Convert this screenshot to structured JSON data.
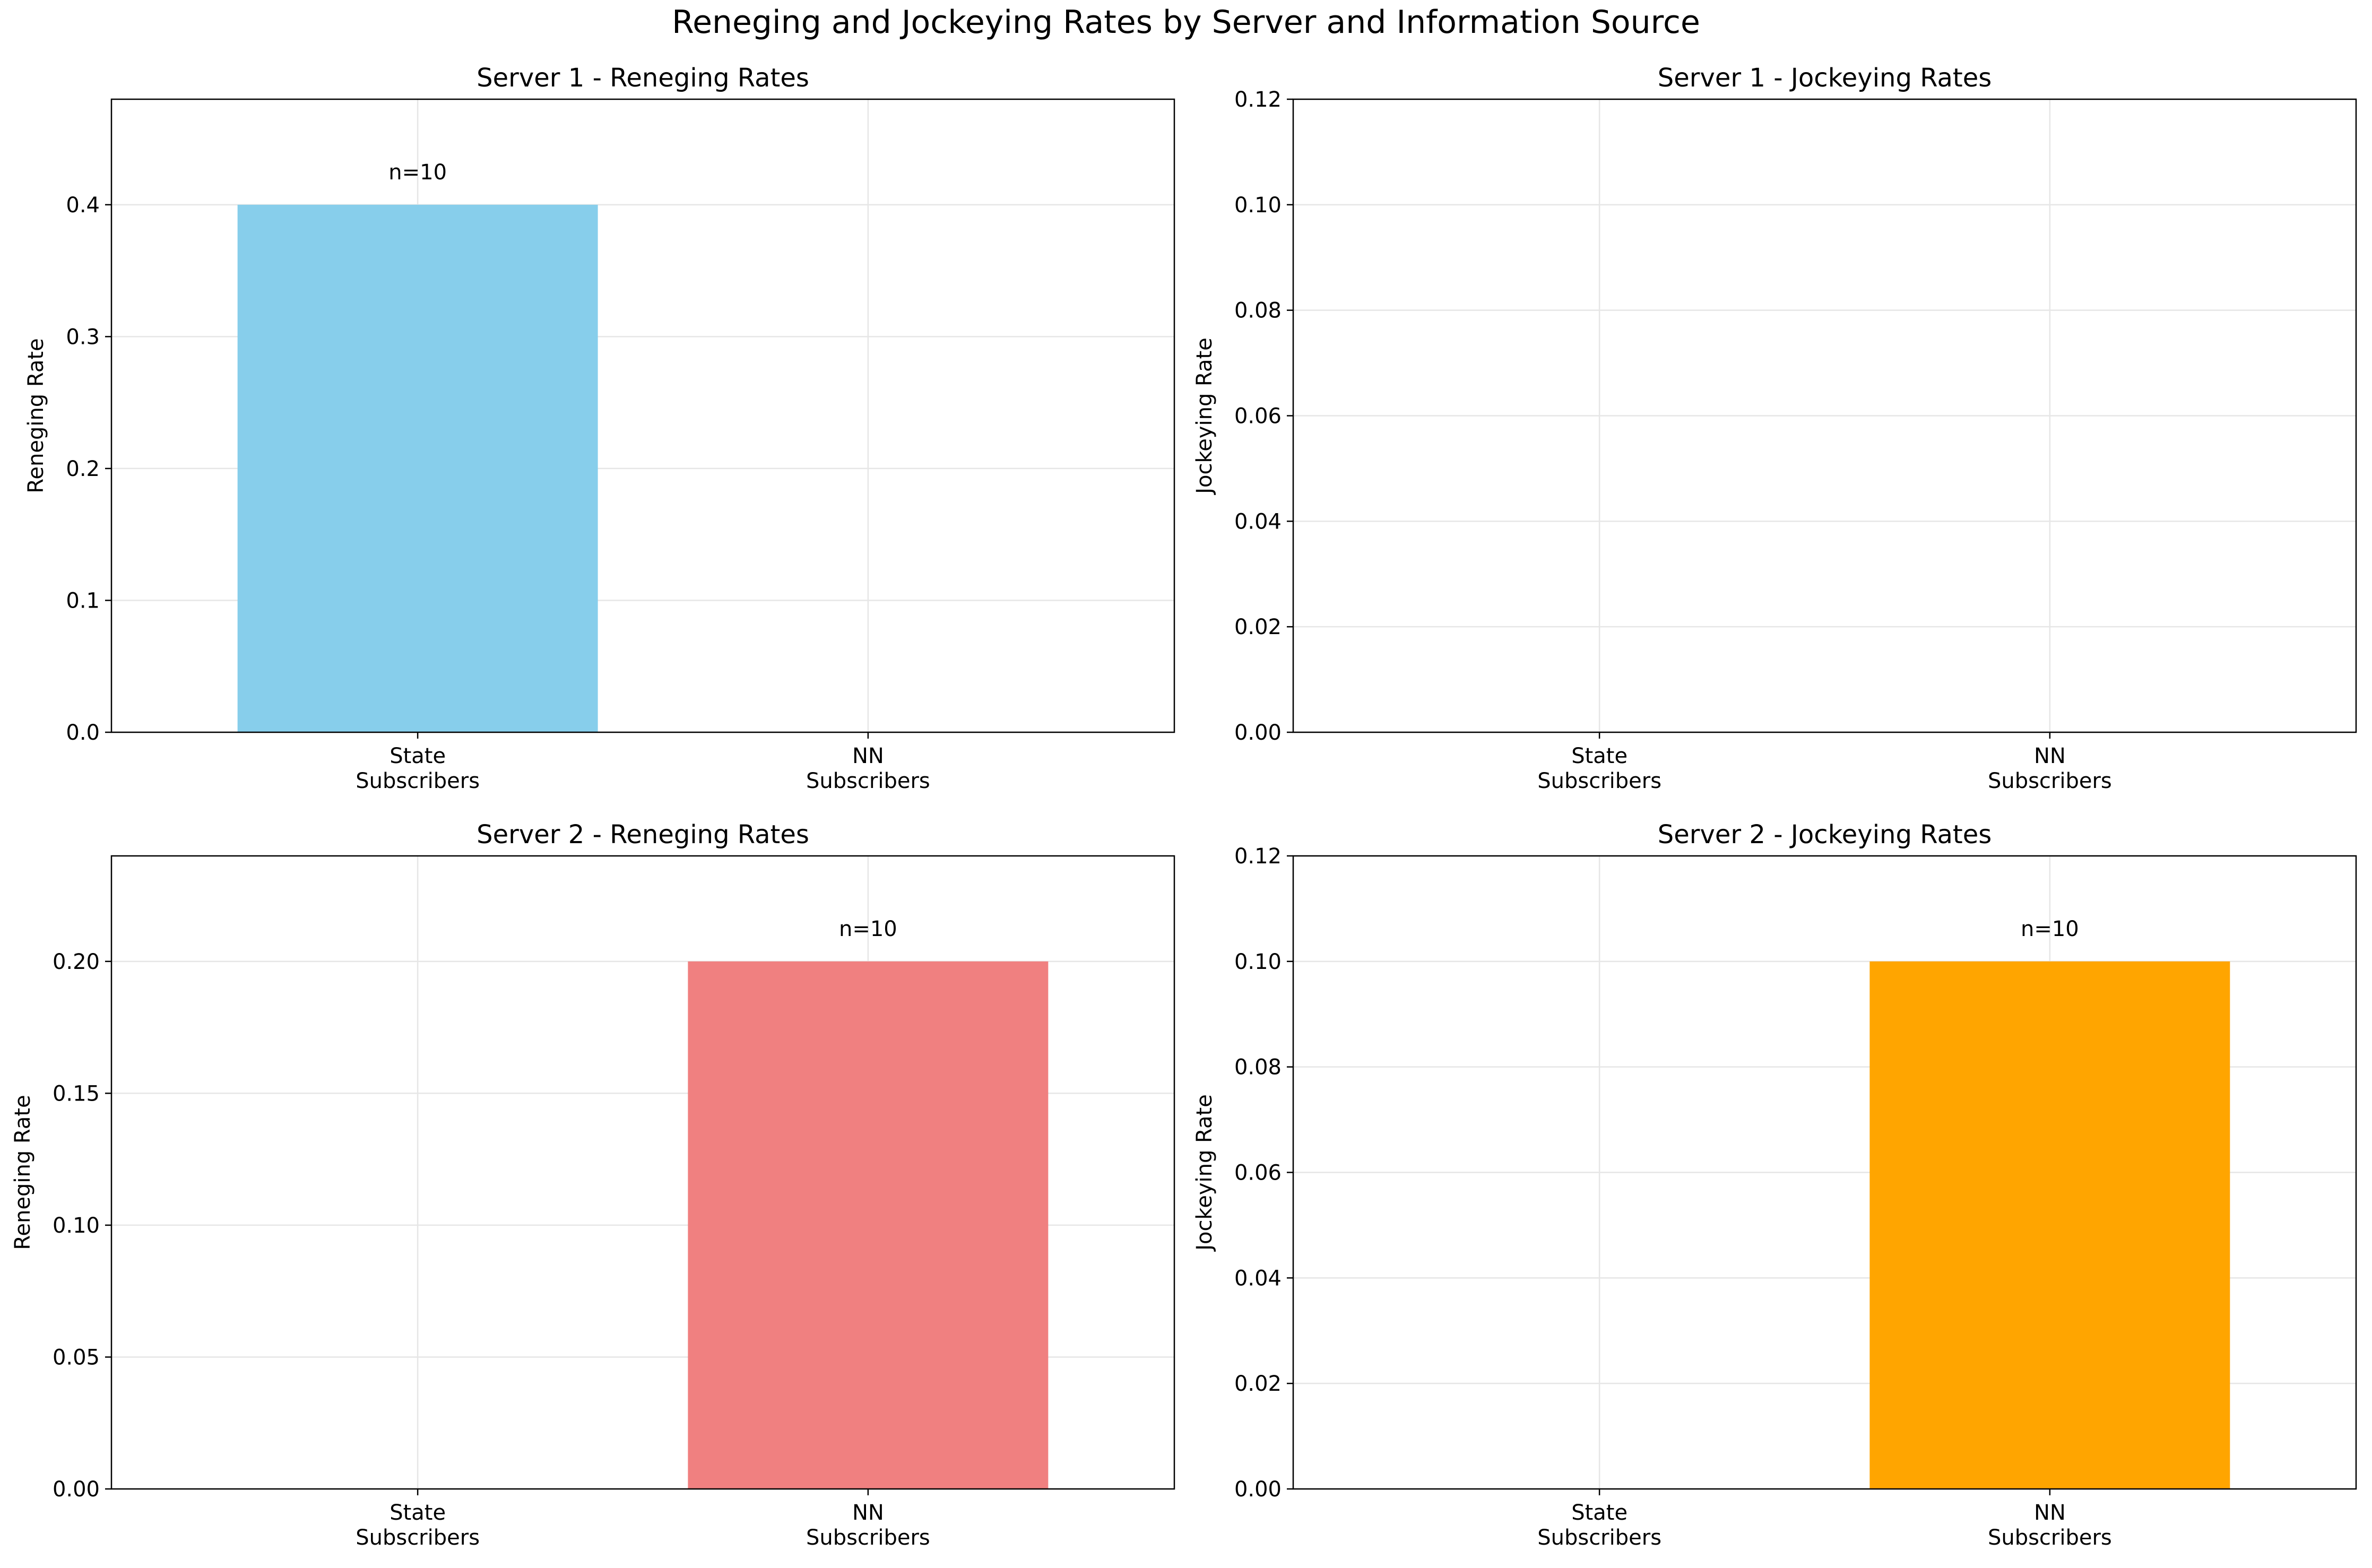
{
  "figure": {
    "suptitle": "Reneging and Jockeying Rates by Server and Information Source"
  },
  "chart_data": [
    {
      "type": "bar",
      "title": "Server 1 - Reneging Rates",
      "xlabel": "",
      "ylabel": "Reneging Rate",
      "categories": [
        "State\nSubscribers",
        "NN\nSubscribers"
      ],
      "values": [
        0.4,
        0
      ],
      "bar_labels": [
        "n=10",
        ""
      ],
      "bar_color": "#87CEEB",
      "ylim": [
        0,
        0.48
      ],
      "yticks": [
        "0.0",
        "0.1",
        "0.2",
        "0.3",
        "0.4"
      ],
      "grid": true,
      "legend": "none"
    },
    {
      "type": "bar",
      "title": "Server 1 - Jockeying Rates",
      "xlabel": "",
      "ylabel": "Jockeying Rate",
      "categories": [
        "State\nSubscribers",
        "NN\nSubscribers"
      ],
      "values": [
        0,
        0
      ],
      "bar_labels": [
        "",
        ""
      ],
      "bar_color": "#FFA500",
      "ylim": [
        0,
        0.12
      ],
      "yticks": [
        "0.00",
        "0.02",
        "0.04",
        "0.06",
        "0.08",
        "0.10",
        "0.12"
      ],
      "grid": true,
      "legend": "none"
    },
    {
      "type": "bar",
      "title": "Server 2 - Reneging Rates",
      "xlabel": "",
      "ylabel": "Reneging Rate",
      "categories": [
        "State\nSubscribers",
        "NN\nSubscribers"
      ],
      "values": [
        0,
        0.2
      ],
      "bar_labels": [
        "",
        "n=10"
      ],
      "bar_color": "#F08080",
      "ylim": [
        0,
        0.24
      ],
      "yticks": [
        "0.00",
        "0.05",
        "0.10",
        "0.15",
        "0.20"
      ],
      "grid": true,
      "legend": "none"
    },
    {
      "type": "bar",
      "title": "Server 2 - Jockeying Rates",
      "xlabel": "",
      "ylabel": "Jockeying Rate",
      "categories": [
        "State\nSubscribers",
        "NN\nSubscribers"
      ],
      "values": [
        0,
        0.1
      ],
      "bar_labels": [
        "",
        "n=10"
      ],
      "bar_color": "#FFA500",
      "ylim": [
        0,
        0.12
      ],
      "yticks": [
        "0.00",
        "0.02",
        "0.04",
        "0.06",
        "0.08",
        "0.10",
        "0.12"
      ],
      "grid": true,
      "legend": "none"
    }
  ]
}
